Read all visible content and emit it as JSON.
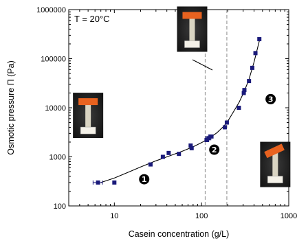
{
  "chart_data": {
    "type": "scatter",
    "xlabel": "Casein concentration (g/L)",
    "ylabel": "Osmotic pressure Π (Pa)",
    "xscale": "log",
    "yscale": "log",
    "xlim": [
      3,
      1000
    ],
    "ylim": [
      100,
      1000000
    ],
    "x_tick_labels": [
      "10",
      "100",
      "1000"
    ],
    "x_tick_values": [
      10,
      100,
      1000
    ],
    "y_tick_labels": [
      "100",
      "1000",
      "10000",
      "100000",
      "1000000"
    ],
    "y_tick_values": [
      100,
      1000,
      10000,
      100000,
      1000000
    ],
    "annotation": "T = 20°C",
    "marker_color": "#1a1a7a",
    "points": [
      {
        "x": 6.5,
        "y": 300,
        "xerr": 0.8
      },
      {
        "x": 10,
        "y": 300
      },
      {
        "x": 26,
        "y": 700
      },
      {
        "x": 36,
        "y": 1000
      },
      {
        "x": 42,
        "y": 1200
      },
      {
        "x": 55,
        "y": 1150
      },
      {
        "x": 75,
        "y": 1700
      },
      {
        "x": 77,
        "y": 1500
      },
      {
        "x": 115,
        "y": 2200,
        "xerr": 6
      },
      {
        "x": 120,
        "y": 2400,
        "xerr": 8
      },
      {
        "x": 128,
        "y": 2600,
        "xerr": 8
      },
      {
        "x": 185,
        "y": 4000
      },
      {
        "x": 195,
        "y": 5000
      },
      {
        "x": 268,
        "y": 10000
      },
      {
        "x": 305,
        "y": 20000
      },
      {
        "x": 310,
        "y": 23000
      },
      {
        "x": 350,
        "y": 35000
      },
      {
        "x": 382,
        "y": 65000
      },
      {
        "x": 415,
        "y": 130000
      },
      {
        "x": 460,
        "y": 250000
      }
    ],
    "fit_curve": {
      "x": [
        7,
        10,
        15,
        20,
        30,
        40,
        60,
        80,
        100,
        120,
        150,
        180,
        200,
        230,
        270,
        310,
        350,
        400,
        460
      ],
      "y": [
        300,
        370,
        500,
        620,
        830,
        1000,
        1300,
        1600,
        1950,
        2350,
        3100,
        4200,
        5300,
        8000,
        13000,
        22000,
        38000,
        85000,
        230000
      ]
    },
    "region_boundaries_x": [
      110,
      195
    ],
    "regions": [
      {
        "label": "1",
        "x": 22,
        "y": 350
      },
      {
        "label": "2",
        "x": 140,
        "y": 1400
      },
      {
        "label": "3",
        "x": 620,
        "y": 15000
      }
    ],
    "photos": [
      {
        "name": "dilute-regime-photo",
        "x": 5,
        "y": 7000,
        "label": "photo of tube, liquid sample"
      },
      {
        "name": "mid-regime-photo",
        "x": 78,
        "y": 400000,
        "label": "photo of tube, gel sample"
      },
      {
        "name": "concentrated-regime-photo",
        "x": 700,
        "y": 700,
        "label": "photo of tube, solid sample"
      }
    ],
    "grid": false,
    "legend": "none"
  }
}
